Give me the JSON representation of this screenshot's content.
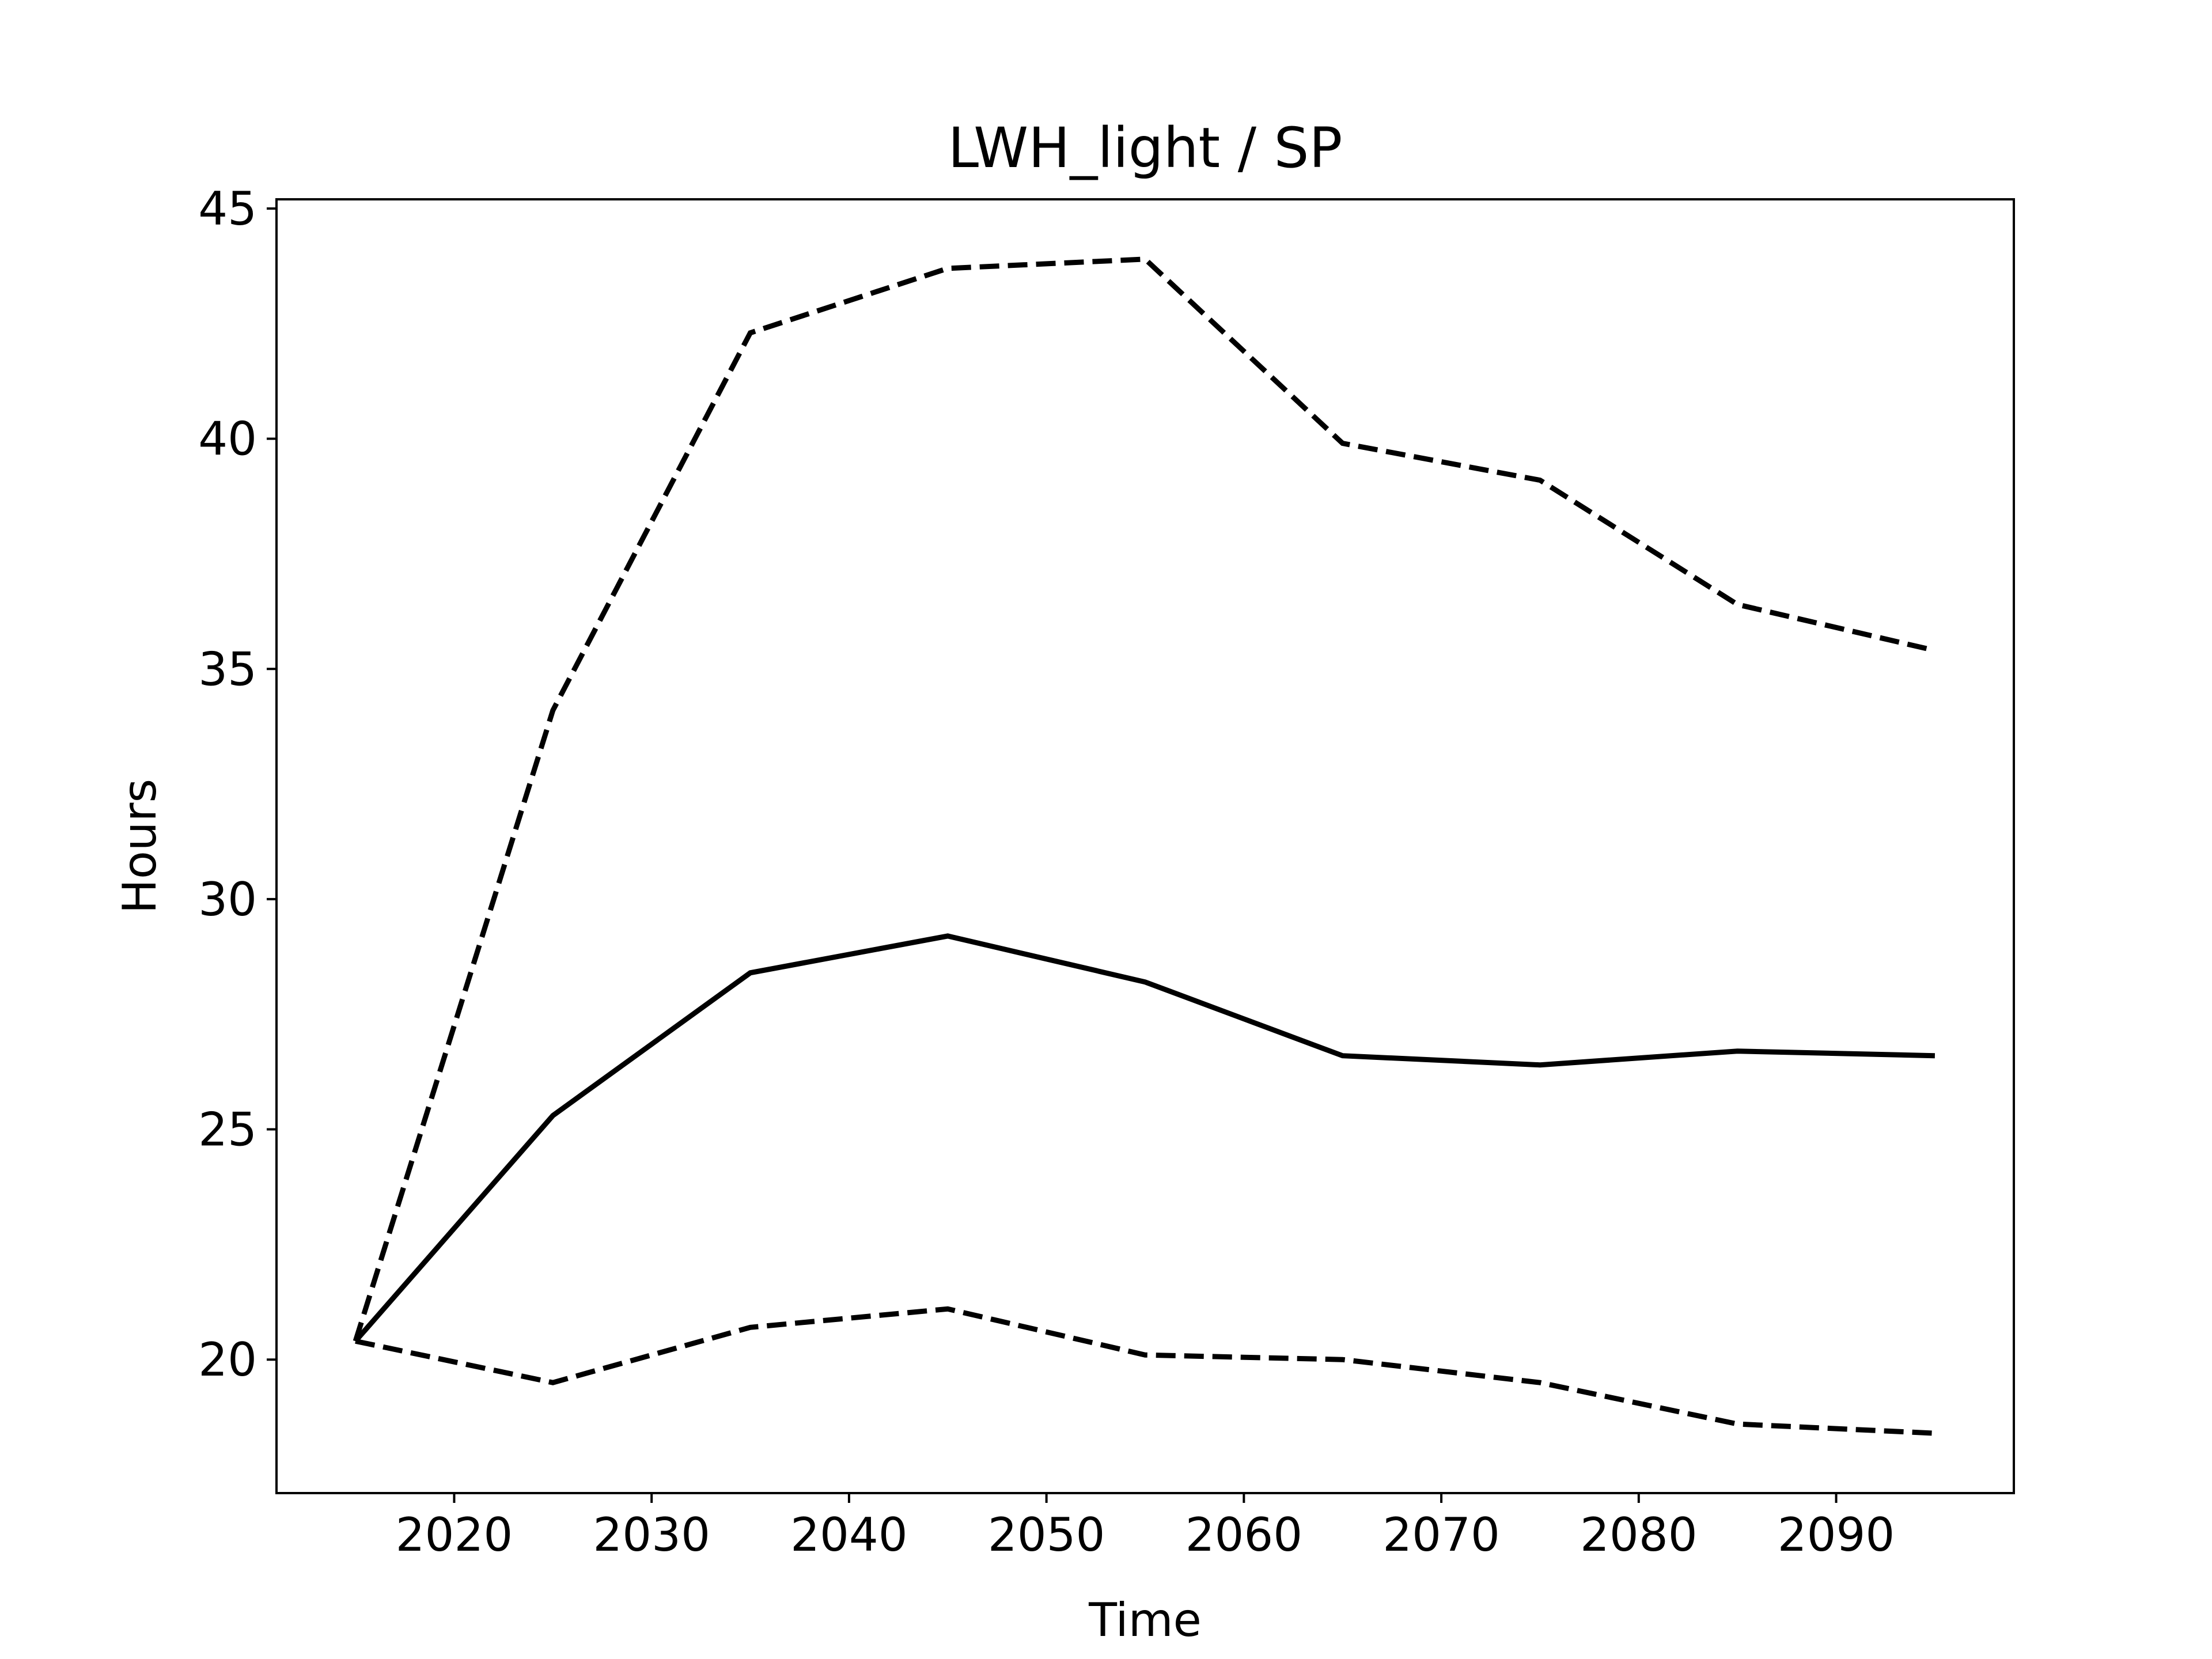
{
  "chart_data": {
    "type": "line",
    "title": "LWH_light / SP",
    "xlabel": "Time",
    "ylabel": "Hours",
    "xlim": [
      2011,
      2099
    ],
    "ylim": [
      17.1,
      45.2
    ],
    "xticks": [
      2020,
      2030,
      2040,
      2050,
      2060,
      2070,
      2080,
      2090
    ],
    "yticks": [
      20,
      25,
      30,
      35,
      40,
      45
    ],
    "grid": false,
    "legend": "none",
    "x": [
      2015,
      2025,
      2035,
      2045,
      2055,
      2065,
      2075,
      2085,
      2095
    ],
    "series": [
      {
        "style": "solid",
        "color": "#000000",
        "values": [
          20.4,
          25.3,
          28.4,
          29.2,
          28.2,
          26.6,
          26.4,
          26.7,
          26.6
        ]
      },
      {
        "style": "dashed",
        "color": "#000000",
        "values": [
          20.4,
          34.1,
          42.3,
          43.7,
          43.9,
          39.9,
          39.1,
          36.4,
          35.4
        ]
      },
      {
        "style": "dashed",
        "color": "#000000",
        "values": [
          20.4,
          19.5,
          20.7,
          21.1,
          20.1,
          20.0,
          19.5,
          18.6,
          18.4
        ]
      }
    ]
  }
}
